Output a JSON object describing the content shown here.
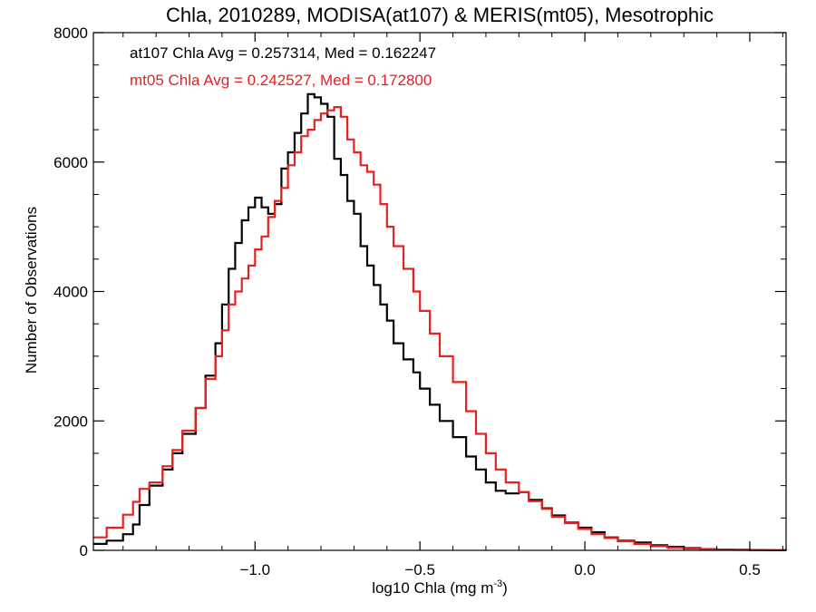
{
  "chart_data": {
    "type": "line",
    "title": "Chla, 2010289, MODISA(at107) & MERIS(mt05), Mesotrophic",
    "xlabel": "log10 Chla (mg m",
    "xlabel_superscript": "-3",
    "xlabel_suffix": ")",
    "ylabel": "Number of Observations",
    "xlim": [
      -1.49,
      0.61
    ],
    "ylim": [
      0,
      8000
    ],
    "x_ticks": [
      -1.0,
      -0.5,
      0.0,
      0.5
    ],
    "x_tick_labels": [
      "−1.0",
      "−0.5",
      "0.0",
      "0.5"
    ],
    "y_ticks": [
      0,
      2000,
      4000,
      6000,
      8000
    ],
    "y_tick_labels": [
      "0",
      "2000",
      "4000",
      "6000",
      "8000"
    ],
    "grid": false,
    "annotations": [
      {
        "text": "at107 Chla Avg = 0.257314, Med = 0.162247",
        "color": "#000000"
      },
      {
        "text": "mt05 Chla Avg = 0.242527, Med = 0.172800",
        "color": "#e8201e"
      }
    ],
    "series": [
      {
        "color": "#000000",
        "step": true,
        "x": [
          -1.49,
          -1.45,
          -1.4,
          -1.37,
          -1.35,
          -1.32,
          -1.28,
          -1.25,
          -1.22,
          -1.18,
          -1.15,
          -1.12,
          -1.1,
          -1.08,
          -1.06,
          -1.04,
          -1.02,
          -1.0,
          -0.98,
          -0.96,
          -0.94,
          -0.92,
          -0.9,
          -0.88,
          -0.86,
          -0.84,
          -0.82,
          -0.8,
          -0.78,
          -0.76,
          -0.74,
          -0.72,
          -0.7,
          -0.68,
          -0.66,
          -0.64,
          -0.62,
          -0.6,
          -0.58,
          -0.55,
          -0.52,
          -0.5,
          -0.47,
          -0.44,
          -0.4,
          -0.36,
          -0.33,
          -0.3,
          -0.27,
          -0.24,
          -0.2,
          -0.17,
          -0.13,
          -0.1,
          -0.06,
          -0.02,
          0.02,
          0.06,
          0.1,
          0.15,
          0.2,
          0.25,
          0.3,
          0.35,
          0.4,
          0.45,
          0.5,
          0.55,
          0.61
        ],
        "y": [
          100,
          150,
          250,
          400,
          700,
          1000,
          1250,
          1500,
          1800,
          2200,
          2700,
          3200,
          3800,
          4350,
          4750,
          5100,
          5300,
          5450,
          5300,
          5200,
          5350,
          5900,
          6150,
          6450,
          6750,
          7050,
          7000,
          6900,
          6700,
          6050,
          5800,
          5400,
          5200,
          4700,
          4400,
          4100,
          3800,
          3550,
          3200,
          2950,
          2750,
          2500,
          2250,
          2000,
          1750,
          1450,
          1250,
          1050,
          920,
          880,
          900,
          780,
          650,
          540,
          430,
          350,
          280,
          200,
          150,
          120,
          80,
          55,
          35,
          20,
          12,
          8,
          5,
          3,
          2
        ]
      },
      {
        "color": "#e8201e",
        "step": true,
        "x": [
          -1.49,
          -1.45,
          -1.4,
          -1.37,
          -1.35,
          -1.32,
          -1.28,
          -1.25,
          -1.22,
          -1.18,
          -1.15,
          -1.12,
          -1.1,
          -1.08,
          -1.06,
          -1.04,
          -1.02,
          -1.0,
          -0.98,
          -0.96,
          -0.94,
          -0.92,
          -0.9,
          -0.88,
          -0.86,
          -0.84,
          -0.82,
          -0.8,
          -0.78,
          -0.76,
          -0.74,
          -0.72,
          -0.7,
          -0.68,
          -0.66,
          -0.64,
          -0.62,
          -0.6,
          -0.58,
          -0.55,
          -0.52,
          -0.5,
          -0.47,
          -0.44,
          -0.4,
          -0.36,
          -0.33,
          -0.3,
          -0.27,
          -0.24,
          -0.2,
          -0.17,
          -0.13,
          -0.1,
          -0.06,
          -0.02,
          0.02,
          0.06,
          0.1,
          0.15,
          0.2,
          0.25,
          0.3,
          0.35,
          0.4,
          0.45,
          0.5,
          0.55,
          0.61
        ],
        "y": [
          200,
          350,
          550,
          750,
          950,
          1050,
          1300,
          1550,
          1850,
          2200,
          2650,
          3000,
          3400,
          3800,
          4000,
          4200,
          4400,
          4650,
          4850,
          5150,
          5400,
          5600,
          5950,
          6150,
          6400,
          6500,
          6650,
          6750,
          6800,
          6850,
          6700,
          6350,
          6150,
          5950,
          5850,
          5650,
          5350,
          5000,
          4700,
          4350,
          4000,
          3700,
          3350,
          3000,
          2600,
          2150,
          1800,
          1500,
          1250,
          1050,
          900,
          760,
          640,
          520,
          420,
          330,
          250,
          190,
          140,
          100,
          65,
          42,
          28,
          18,
          11,
          7,
          4,
          3,
          2
        ]
      }
    ]
  }
}
